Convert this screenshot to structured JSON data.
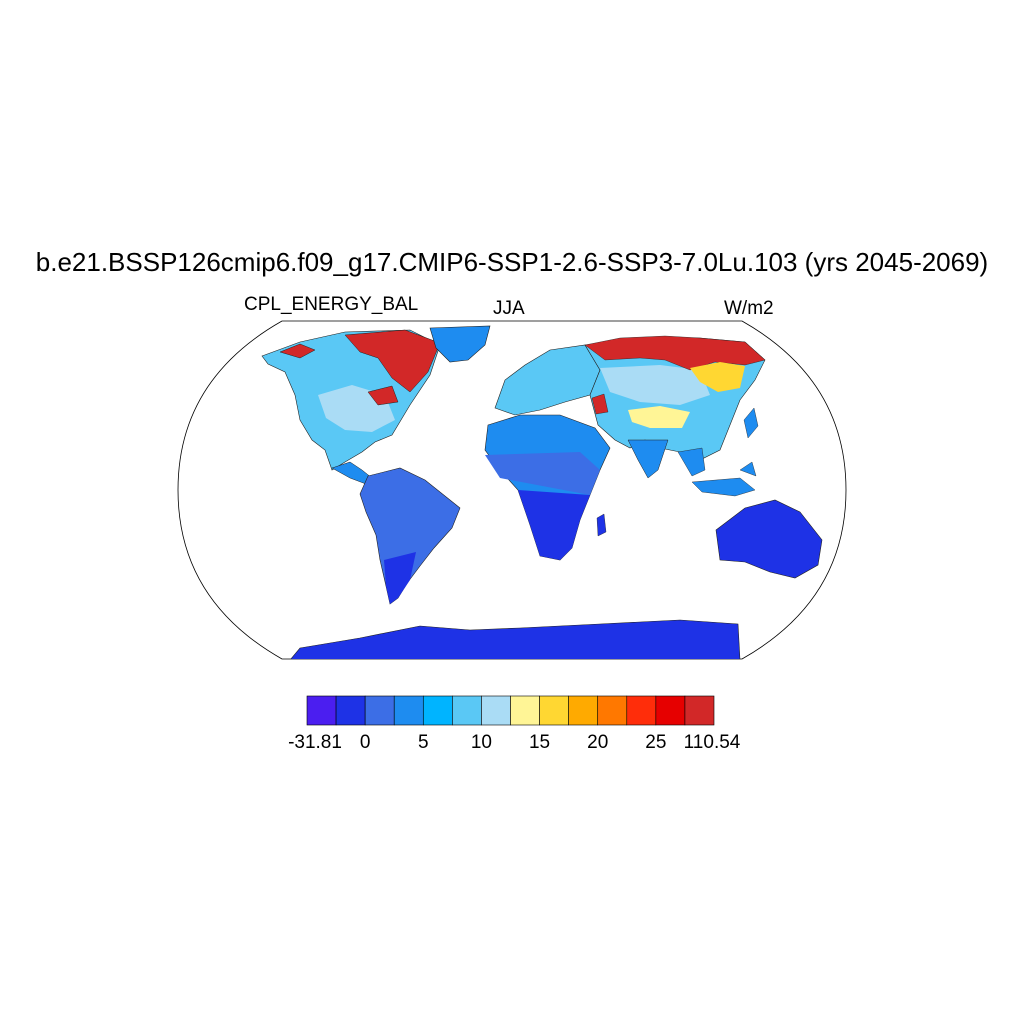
{
  "figure": {
    "title": "b.e21.BSSP126cmip6.f09_g17.CMIP6-SSP1-2.6-SSP3-7.0Lu.103 (yrs 2045-2069)",
    "left_label": "CPL_ENERGY_BAL",
    "center_label": "JJA",
    "right_label": "W/m2"
  },
  "colorbar": {
    "colors": [
      "#4b1ef0",
      "#1e32e6",
      "#3c6ee6",
      "#1e8cf0",
      "#00b4ff",
      "#5ac8f5",
      "#aadcf5",
      "#fff596",
      "#ffd732",
      "#ffaa00",
      "#ff7800",
      "#ff2d0a",
      "#e60000",
      "#d22828"
    ],
    "tick_labels": [
      "-31.81",
      "0",
      "5",
      "10",
      "15",
      "20",
      "25",
      "110.54"
    ]
  },
  "chart_data": {
    "type": "heatmap",
    "title": "b.e21.BSSP126cmip6.f09_g17.CMIP6-SSP1-2.6-SSP3-7.0Lu.103 (yrs 2045-2069)",
    "variable": "CPL_ENERGY_BAL",
    "season": "JJA",
    "units": "W/m2",
    "projection": "Robinson (global)",
    "levels": [
      -31.81,
      0,
      2.5,
      5,
      7.5,
      10,
      12.5,
      15,
      17.5,
      20,
      22.5,
      25,
      27.5,
      110.54
    ],
    "regions": [
      {
        "name": "Antarctica",
        "level": "< 0"
      },
      {
        "name": "Australia",
        "level": "< 0"
      },
      {
        "name": "South America",
        "level": "0 to 2.5"
      },
      {
        "name": "Southern Africa",
        "level": "0 to 2.5"
      },
      {
        "name": "Sahel",
        "level": "2.5 to 5"
      },
      {
        "name": "Sahara / Arabia",
        "level": "5 to 7.5"
      },
      {
        "name": "India / SE Asia",
        "level": "5 to 7.5"
      },
      {
        "name": "Europe / central Asia",
        "level": "7.5 to 12.5"
      },
      {
        "name": "North America",
        "level": "7.5 to 12.5"
      },
      {
        "name": "Tibetan Plateau",
        "level": "15 to 22.5"
      },
      {
        "name": "Siberia / northern Eurasia",
        "level": "15 to 110.54"
      },
      {
        "name": "Canadian Arctic",
        "level": "27.5 to 110.54"
      }
    ]
  }
}
